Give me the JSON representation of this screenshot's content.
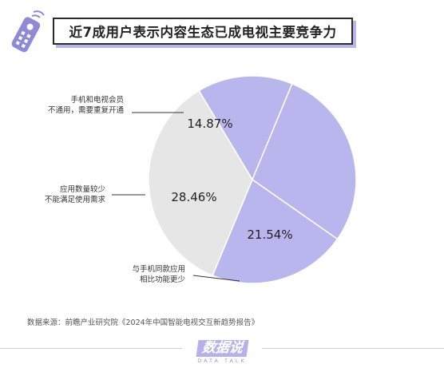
{
  "header": {
    "title": "近7成用户表示内容生态已成电视主要竞争力"
  },
  "chart_data": {
    "type": "pie",
    "slices": [
      {
        "label": "手机和电视会员\n不通用，需要重复开通",
        "value": 14.87,
        "value_label": "14.87%",
        "color": "#b9b6ee"
      },
      {
        "label": "应用数量较少\n不能满足使用需求",
        "value": 28.46,
        "value_label": "28.46%",
        "color": "#b9b6ee"
      },
      {
        "label": "与手机同款应用\n相比功能更少",
        "value": 21.54,
        "value_label": "21.54%",
        "color": "#b9b6ee"
      },
      {
        "label": "",
        "value": 35.13,
        "value_label": "",
        "color": "#e6e6e6"
      }
    ],
    "slice_border": "#ffffff"
  },
  "source": "数据来源：前瞻产业研究院《2024年中国智能电视交互新趋势报告》",
  "brand": {
    "name": "数据说",
    "sub": "DATA TALK"
  },
  "colors": {
    "accent": "#b9b6ee",
    "rest": "#e6e6e6",
    "leader": "#333333"
  }
}
